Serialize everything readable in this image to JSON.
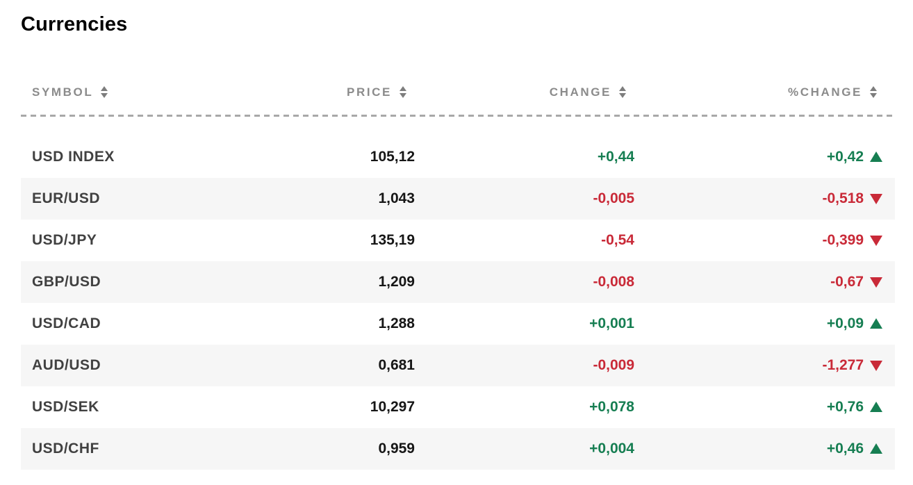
{
  "page": {
    "title": "Currencies"
  },
  "colors": {
    "positive": "#167e52",
    "negative": "#c92a38",
    "header_text": "#8b8b8b",
    "symbol_text": "#414141",
    "price_text": "#161616",
    "row_alt_bg": "#f6f6f6",
    "divider": "#a8a8a8"
  },
  "table": {
    "columns": [
      {
        "key": "symbol",
        "label": "SYMBOL",
        "sortable": true
      },
      {
        "key": "price",
        "label": "PRICE",
        "sortable": true
      },
      {
        "key": "change",
        "label": "CHANGE",
        "sortable": true
      },
      {
        "key": "pct_change",
        "label": "%CHANGE",
        "sortable": true
      }
    ],
    "rows": [
      {
        "symbol": "USD INDEX",
        "price": "105,12",
        "change": "+0,44",
        "pct_change": "+0,42",
        "direction": "up"
      },
      {
        "symbol": "EUR/USD",
        "price": "1,043",
        "change": "-0,005",
        "pct_change": "-0,518",
        "direction": "down"
      },
      {
        "symbol": "USD/JPY",
        "price": "135,19",
        "change": "-0,54",
        "pct_change": "-0,399",
        "direction": "down"
      },
      {
        "symbol": "GBP/USD",
        "price": "1,209",
        "change": "-0,008",
        "pct_change": "-0,67",
        "direction": "down"
      },
      {
        "symbol": "USD/CAD",
        "price": "1,288",
        "change": "+0,001",
        "pct_change": "+0,09",
        "direction": "up"
      },
      {
        "symbol": "AUD/USD",
        "price": "0,681",
        "change": "-0,009",
        "pct_change": "-1,277",
        "direction": "down"
      },
      {
        "symbol": "USD/SEK",
        "price": "10,297",
        "change": "+0,078",
        "pct_change": "+0,76",
        "direction": "up"
      },
      {
        "symbol": "USD/CHF",
        "price": "0,959",
        "change": "+0,004",
        "pct_change": "+0,46",
        "direction": "up"
      }
    ]
  }
}
